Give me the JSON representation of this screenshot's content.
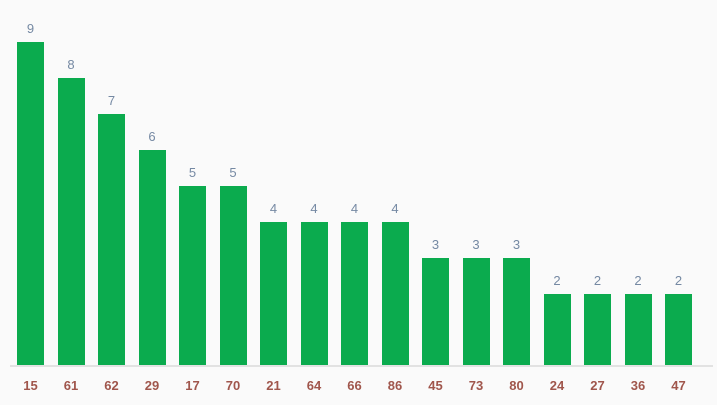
{
  "chart_data": {
    "type": "bar",
    "categories": [
      "15",
      "61",
      "62",
      "29",
      "17",
      "70",
      "21",
      "64",
      "66",
      "86",
      "45",
      "73",
      "80",
      "24",
      "27",
      "36",
      "47"
    ],
    "values": [
      9,
      8,
      7,
      6,
      5,
      5,
      4,
      4,
      4,
      4,
      3,
      3,
      3,
      2,
      2,
      2,
      2
    ],
    "title": "",
    "xlabel": "",
    "ylabel": "",
    "ylim": [
      0,
      10
    ],
    "grid": false,
    "legend": "none",
    "data_labels": "above-bars",
    "colors": {
      "bar": "#0bab4e",
      "value_label": "#7589a3",
      "category_label": "#a0564c",
      "axis_line": "#e2e2e2",
      "background": "#fafafa"
    }
  }
}
